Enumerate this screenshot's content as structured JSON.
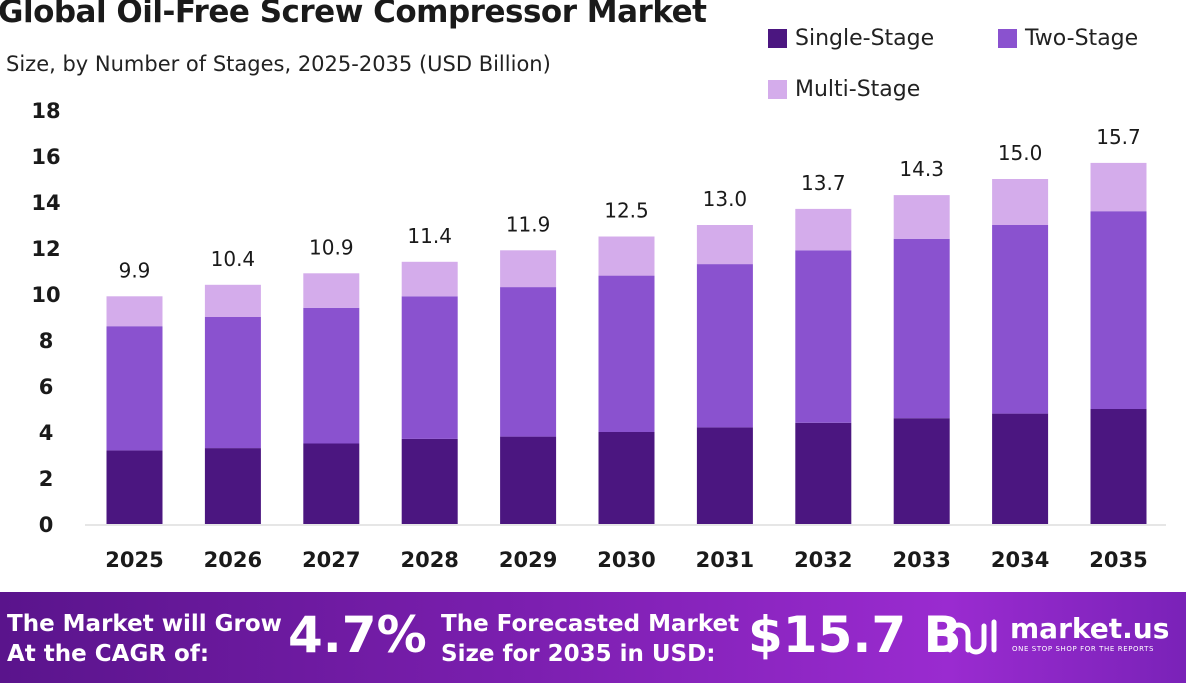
{
  "title": "Global Oil-Free Screw Compressor Market",
  "subtitle": "Size, by Number of Stages, 2025-2035 (USD Billion)",
  "legend": [
    {
      "label": "Single-Stage",
      "color": "#4b1680"
    },
    {
      "label": "Two-Stage",
      "color": "#8a52cf"
    },
    {
      "label": "Multi-Stage",
      "color": "#d4aceb"
    }
  ],
  "chart_data": {
    "type": "bar",
    "stacked": true,
    "categories": [
      "2025",
      "2026",
      "2027",
      "2028",
      "2029",
      "2030",
      "2031",
      "2032",
      "2033",
      "2034",
      "2035"
    ],
    "series": [
      {
        "name": "Single-Stage",
        "color": "#4b1680",
        "values": [
          3.2,
          3.3,
          3.5,
          3.7,
          3.8,
          4.0,
          4.2,
          4.4,
          4.6,
          4.8,
          5.0
        ]
      },
      {
        "name": "Two-Stage",
        "color": "#8a52cf",
        "values": [
          5.4,
          5.7,
          5.9,
          6.2,
          6.5,
          6.8,
          7.1,
          7.5,
          7.8,
          8.2,
          8.6
        ]
      },
      {
        "name": "Multi-Stage",
        "color": "#d4aceb",
        "values": [
          1.3,
          1.4,
          1.5,
          1.5,
          1.6,
          1.7,
          1.7,
          1.8,
          1.9,
          2.0,
          2.1
        ]
      }
    ],
    "totals": [
      "9.9",
      "10.4",
      "10.9",
      "11.4",
      "11.9",
      "12.5",
      "13.0",
      "13.7",
      "14.3",
      "15.0",
      "15.7"
    ],
    "yticks": [
      "0",
      "2",
      "4",
      "6",
      "8",
      "10",
      "12",
      "14",
      "16",
      "18"
    ],
    "ylim": [
      0,
      18
    ],
    "legend_position": "top-right",
    "grid": false
  },
  "footer": {
    "cagr_line1": "The Market will Grow",
    "cagr_line2": "At the CAGR of:",
    "cagr_value": "4.7%",
    "forecast_line1": "The Forecasted Market",
    "forecast_line2": "Size for 2035 in USD:",
    "forecast_value": "$15.7 B",
    "brand": "market.us",
    "tagline": "ONE STOP SHOP FOR THE REPORTS"
  }
}
